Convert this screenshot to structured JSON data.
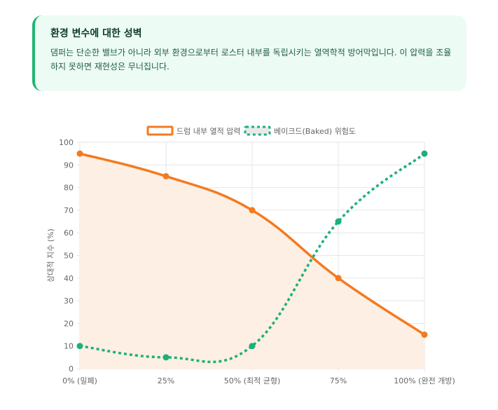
{
  "callout": {
    "title": "환경 변수에 대한 성벽",
    "body": "댐퍼는 단순한 밸브가 아니라 외부 환경으로부터 로스터 내부를 독립시키는 열역학적 방어막입니다. 이 압력을 조율하지 못하면 재현성은 무너집니다."
  },
  "chart_data": {
    "type": "line",
    "categories": [
      "0% (밀폐)",
      "25%",
      "50% (최적 균형)",
      "75%",
      "100% (완전 개방)"
    ],
    "ylabel": "상대적 지수 (%)",
    "xlabel": "",
    "ylim": [
      0,
      100
    ],
    "yticks": [
      0,
      10,
      20,
      30,
      40,
      50,
      60,
      70,
      80,
      90,
      100
    ],
    "grid": true,
    "legend_position": "top",
    "series": [
      {
        "name": "드럼 내부 열적 압력",
        "values": [
          95,
          85,
          70,
          40,
          15
        ],
        "color": "#f47a20",
        "fill": "#fdefe3",
        "style": "solid"
      },
      {
        "name": "베이크드(Baked) 위험도",
        "values": [
          10,
          5,
          10,
          65,
          95
        ],
        "color": "#1bb07a",
        "style": "dotted"
      }
    ]
  }
}
